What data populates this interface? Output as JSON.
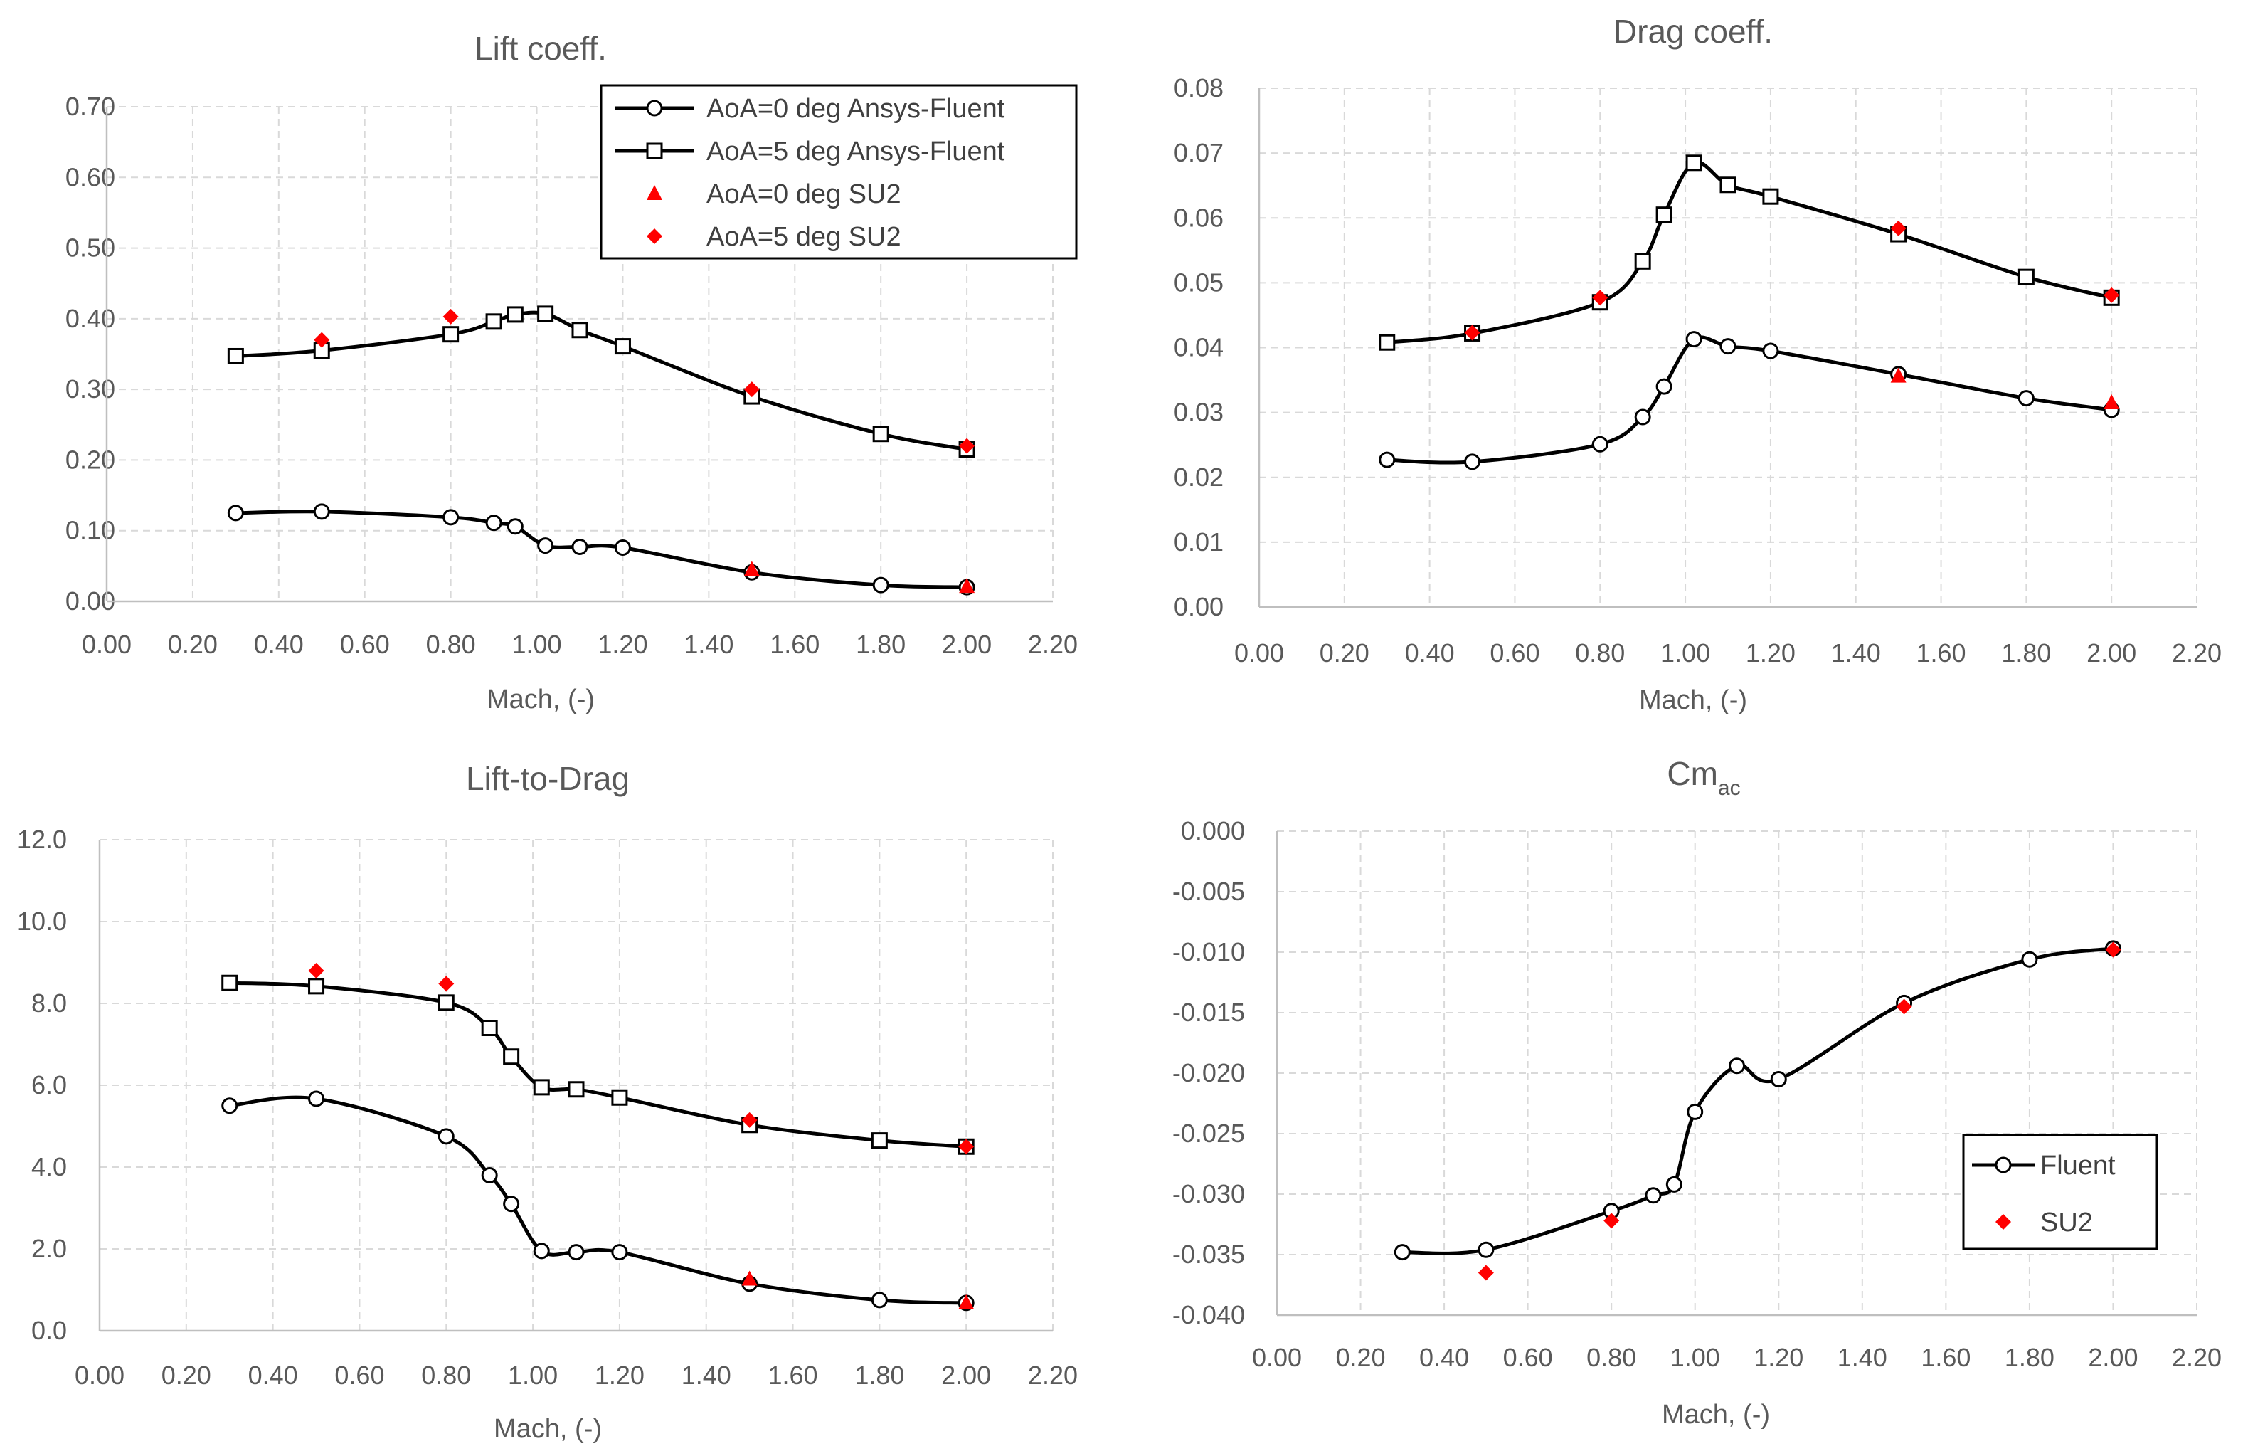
{
  "colors": {
    "fluent": "#000000",
    "su2": "#ff0000",
    "grid": "#d9d9d9",
    "text": "#595959"
  },
  "chart_data": [
    {
      "id": "lift",
      "type": "line",
      "title": "Lift coeff.",
      "xlabel": "Mach, (-)",
      "ylabel": "",
      "xlim": [
        0,
        2.2
      ],
      "ylim": [
        0,
        0.7
      ],
      "xticks": [
        "0.00",
        "0.20",
        "0.40",
        "0.60",
        "0.80",
        "1.00",
        "1.20",
        "1.40",
        "1.60",
        "1.80",
        "2.00",
        "2.20"
      ],
      "yticks": [
        "0.00",
        "0.10",
        "0.20",
        "0.30",
        "0.40",
        "0.50",
        "0.60",
        "0.70"
      ],
      "legend_position": "top-right",
      "series": [
        {
          "name": "AoA=0 deg Ansys-Fluent",
          "kind": "line",
          "marker": "circle",
          "x": [
            0.3,
            0.5,
            0.8,
            0.9,
            0.95,
            1.02,
            1.1,
            1.2,
            1.5,
            1.8,
            2.0
          ],
          "y": [
            0.125,
            0.127,
            0.119,
            0.111,
            0.106,
            0.079,
            0.077,
            0.076,
            0.041,
            0.023,
            0.02
          ]
        },
        {
          "name": "AoA=5 deg Ansys-Fluent",
          "kind": "line",
          "marker": "square",
          "x": [
            0.3,
            0.5,
            0.8,
            0.9,
            0.95,
            1.02,
            1.1,
            1.2,
            1.5,
            1.8,
            2.0
          ],
          "y": [
            0.347,
            0.355,
            0.378,
            0.396,
            0.406,
            0.407,
            0.384,
            0.361,
            0.29,
            0.237,
            0.215
          ]
        },
        {
          "name": "AoA=0 deg SU2",
          "kind": "scatter",
          "marker": "triangle",
          "x": [
            1.5,
            2.0
          ],
          "y": [
            0.045,
            0.021
          ]
        },
        {
          "name": "AoA=5 deg SU2",
          "kind": "scatter",
          "marker": "diamond",
          "x": [
            0.5,
            0.8,
            1.5,
            2.0
          ],
          "y": [
            0.37,
            0.403,
            0.3,
            0.22
          ]
        }
      ]
    },
    {
      "id": "drag",
      "type": "line",
      "title": "Drag coeff.",
      "xlabel": "Mach, (-)",
      "ylabel": "",
      "xlim": [
        0,
        2.2
      ],
      "ylim": [
        0,
        0.08
      ],
      "xticks": [
        "0.00",
        "0.20",
        "0.40",
        "0.60",
        "0.80",
        "1.00",
        "1.20",
        "1.40",
        "1.60",
        "1.80",
        "2.00",
        "2.20"
      ],
      "yticks": [
        "0.00",
        "0.01",
        "0.02",
        "0.03",
        "0.04",
        "0.05",
        "0.06",
        "0.07",
        "0.08"
      ],
      "series": [
        {
          "name": "AoA=0 deg Ansys-Fluent",
          "kind": "line",
          "marker": "circle",
          "x": [
            0.3,
            0.5,
            0.8,
            0.9,
            0.95,
            1.02,
            1.1,
            1.2,
            1.5,
            1.8,
            2.0
          ],
          "y": [
            0.0227,
            0.0224,
            0.0251,
            0.0293,
            0.034,
            0.0413,
            0.0402,
            0.0395,
            0.0359,
            0.0322,
            0.0304
          ]
        },
        {
          "name": "AoA=5 deg Ansys-Fluent",
          "kind": "line",
          "marker": "square",
          "x": [
            0.3,
            0.5,
            0.8,
            0.9,
            0.95,
            1.02,
            1.1,
            1.2,
            1.5,
            1.8,
            2.0
          ],
          "y": [
            0.0408,
            0.0422,
            0.047,
            0.0533,
            0.0605,
            0.0685,
            0.0651,
            0.0633,
            0.0575,
            0.0509,
            0.0477
          ]
        },
        {
          "name": "AoA=0 deg SU2",
          "kind": "scatter",
          "marker": "triangle",
          "x": [
            1.5,
            2.0
          ],
          "y": [
            0.0356,
            0.0315
          ]
        },
        {
          "name": "AoA=5 deg SU2",
          "kind": "scatter",
          "marker": "diamond",
          "x": [
            0.5,
            0.8,
            1.5,
            2.0
          ],
          "y": [
            0.0423,
            0.0477,
            0.0584,
            0.0481
          ]
        }
      ]
    },
    {
      "id": "ltd",
      "type": "line",
      "title": "Lift-to-Drag",
      "xlabel": "Mach, (-)",
      "ylabel": "",
      "xlim": [
        0,
        2.2
      ],
      "ylim": [
        0,
        12
      ],
      "xticks": [
        "0.00",
        "0.20",
        "0.40",
        "0.60",
        "0.80",
        "1.00",
        "1.20",
        "1.40",
        "1.60",
        "1.80",
        "2.00",
        "2.20"
      ],
      "yticks": [
        "0.0",
        "2.0",
        "4.0",
        "6.0",
        "8.0",
        "10.0",
        "12.0"
      ],
      "series": [
        {
          "name": "AoA=0 deg Ansys-Fluent",
          "kind": "line",
          "marker": "circle",
          "x": [
            0.3,
            0.5,
            0.8,
            0.9,
            0.95,
            1.02,
            1.1,
            1.2,
            1.5,
            1.8,
            2.0
          ],
          "y": [
            5.5,
            5.67,
            4.75,
            3.8,
            3.1,
            1.95,
            1.92,
            1.92,
            1.15,
            0.75,
            0.68
          ]
        },
        {
          "name": "AoA=5 deg Ansys-Fluent",
          "kind": "line",
          "marker": "square",
          "x": [
            0.3,
            0.5,
            0.8,
            0.9,
            0.95,
            1.02,
            1.1,
            1.2,
            1.5,
            1.8,
            2.0
          ],
          "y": [
            8.5,
            8.42,
            8.02,
            7.4,
            6.7,
            5.95,
            5.9,
            5.7,
            5.03,
            4.65,
            4.5
          ]
        },
        {
          "name": "AoA=0 deg SU2",
          "kind": "scatter",
          "marker": "triangle",
          "x": [
            1.5,
            2.0
          ],
          "y": [
            1.26,
            0.68
          ]
        },
        {
          "name": "AoA=5 deg SU2",
          "kind": "scatter",
          "marker": "diamond",
          "x": [
            0.5,
            0.8,
            1.5,
            2.0
          ],
          "y": [
            8.8,
            8.48,
            5.15,
            4.5
          ]
        }
      ]
    },
    {
      "id": "cm",
      "type": "line",
      "title": "Cm",
      "title_subscript": "ac",
      "xlabel": "Mach, (-)",
      "ylabel": "",
      "xlim": [
        0,
        2.2
      ],
      "ylim": [
        -0.04,
        0
      ],
      "xticks": [
        "0.00",
        "0.20",
        "0.40",
        "0.60",
        "0.80",
        "1.00",
        "1.20",
        "1.40",
        "1.60",
        "1.80",
        "2.00",
        "2.20"
      ],
      "yticks": [
        "-0.040",
        "-0.035",
        "-0.030",
        "-0.025",
        "-0.020",
        "-0.015",
        "-0.010",
        "-0.005",
        "0.000"
      ],
      "legend_position": "bottom-right",
      "series": [
        {
          "name": "Fluent",
          "kind": "line",
          "marker": "circle",
          "x": [
            0.3,
            0.5,
            0.8,
            0.9,
            0.95,
            1.0,
            1.1,
            1.2,
            1.5,
            1.8,
            2.0
          ],
          "y": [
            -0.0348,
            -0.0346,
            -0.0314,
            -0.0301,
            -0.0292,
            -0.0232,
            -0.0194,
            -0.0205,
            -0.0142,
            -0.0106,
            -0.0097
          ]
        },
        {
          "name": "SU2",
          "kind": "scatter",
          "marker": "diamond",
          "x": [
            0.5,
            0.8,
            1.5,
            2.0
          ],
          "y": [
            -0.0365,
            -0.0322,
            -0.0145,
            -0.0098
          ]
        }
      ]
    }
  ]
}
